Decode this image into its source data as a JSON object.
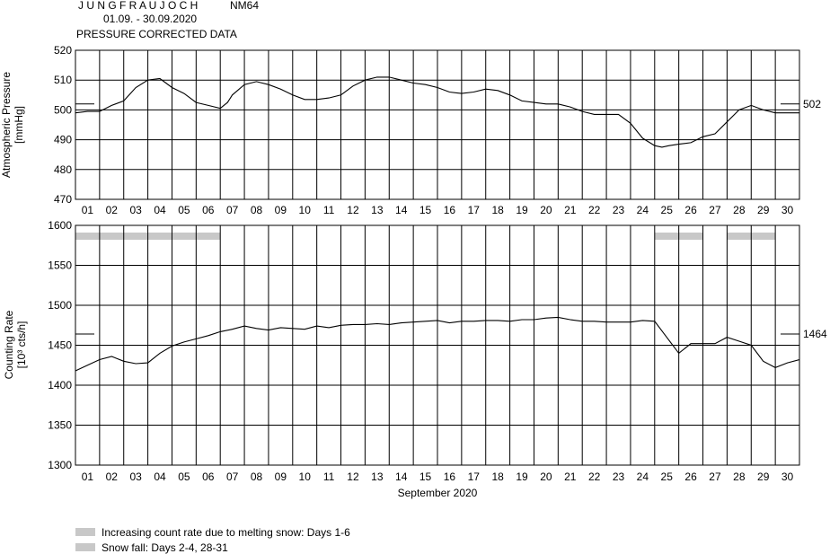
{
  "header": {
    "station": "J U N G F R A U J O C H",
    "monitor": "NM64",
    "date_range": "01.09. - 30.09.2020",
    "subtitle": "PRESSURE CORRECTED DATA"
  },
  "colors": {
    "line": "#000000",
    "grid": "#000000",
    "band": "#c8c8c8"
  },
  "chart_data": [
    {
      "type": "line",
      "name": "pressure",
      "ylabel": "Atmospheric Pressure",
      "yunit": "[mmHg]",
      "ylim": [
        470,
        520
      ],
      "yticks": [
        470,
        480,
        490,
        500,
        510,
        520
      ],
      "xlim": [
        0,
        30
      ],
      "xticks": [
        "01",
        "02",
        "03",
        "04",
        "05",
        "06",
        "07",
        "08",
        "09",
        "10",
        "11",
        "12",
        "13",
        "14",
        "15",
        "16",
        "17",
        "18",
        "19",
        "20",
        "21",
        "22",
        "23",
        "24",
        "25",
        "26",
        "27",
        "28",
        "29",
        "30"
      ],
      "grid": true,
      "reference": {
        "value": 502,
        "label": "502"
      },
      "x": [
        0,
        0.5,
        1,
        1.5,
        2,
        2.5,
        3,
        3.5,
        4,
        4.5,
        5,
        5.5,
        6,
        6.3,
        6.5,
        7,
        7.5,
        8,
        8.5,
        9,
        9.5,
        10,
        10.5,
        11,
        11.5,
        12,
        12.5,
        13,
        13.5,
        14,
        14.5,
        15,
        15.5,
        16,
        16.5,
        17,
        17.5,
        18,
        18.5,
        19,
        19.5,
        20,
        20.5,
        21,
        21.5,
        22,
        22.5,
        23,
        23.5,
        24,
        24.3,
        24.6,
        25,
        25.5,
        26,
        26.5,
        27,
        27.5,
        28,
        28.5,
        29,
        29.5,
        30
      ],
      "y": [
        499,
        499.5,
        499.5,
        501.5,
        503,
        507.5,
        510,
        510.5,
        507.5,
        505.5,
        502.5,
        501.5,
        500.5,
        502.5,
        505,
        508.5,
        509.5,
        508.5,
        507,
        505,
        503.5,
        503.5,
        504,
        505,
        508,
        510,
        511,
        511,
        510,
        509,
        508.5,
        507.5,
        506,
        505.5,
        506,
        507,
        506.5,
        505,
        503,
        502.5,
        502,
        502,
        501,
        499.5,
        498.5,
        498.5,
        498.5,
        495.5,
        490.5,
        488,
        487.5,
        488,
        488.5,
        489,
        491,
        492,
        496,
        500,
        501.5,
        500,
        499,
        499,
        499
      ]
    },
    {
      "type": "line",
      "name": "counting_rate",
      "ylabel": "Counting Rate",
      "yunit": "[10³ cts/h]",
      "ylim": [
        1300,
        1600
      ],
      "yticks": [
        1300,
        1350,
        1400,
        1450,
        1500,
        1550,
        1600
      ],
      "xlim": [
        0,
        30
      ],
      "xticks": [
        "01",
        "02",
        "03",
        "04",
        "05",
        "06",
        "07",
        "08",
        "09",
        "10",
        "11",
        "12",
        "13",
        "14",
        "15",
        "16",
        "17",
        "18",
        "19",
        "20",
        "21",
        "22",
        "23",
        "24",
        "25",
        "26",
        "27",
        "28",
        "29",
        "30"
      ],
      "xlabel": "September 2020",
      "grid": true,
      "reference": {
        "value": 1464,
        "label": "1464"
      },
      "bands": [
        {
          "start": 0,
          "end": 6
        },
        {
          "start": 24,
          "end": 26
        },
        {
          "start": 27,
          "end": 29
        }
      ],
      "x": [
        0,
        0.5,
        1,
        1.5,
        2,
        2.5,
        3,
        3.5,
        4,
        4.5,
        5,
        5.5,
        6,
        6.5,
        7,
        7.5,
        8,
        8.5,
        9,
        9.5,
        10,
        10.5,
        11,
        11.5,
        12,
        12.5,
        13,
        13.5,
        14,
        14.5,
        15,
        15.5,
        16,
        16.5,
        17,
        17.5,
        18,
        18.5,
        19,
        19.5,
        20,
        20.5,
        21,
        21.5,
        22,
        22.5,
        23,
        23.5,
        24,
        24.5,
        25,
        25.5,
        26,
        26.5,
        27,
        27.5,
        28,
        28.5,
        29,
        29.5,
        30
      ],
      "y": [
        1418,
        1425,
        1432,
        1436,
        1430,
        1427,
        1428,
        1440,
        1449,
        1454,
        1458,
        1462,
        1467,
        1470,
        1474,
        1471,
        1469,
        1472,
        1471,
        1470,
        1474,
        1472,
        1475,
        1476,
        1476,
        1477,
        1476,
        1478,
        1479,
        1480,
        1481,
        1478,
        1480,
        1480,
        1481,
        1481,
        1480,
        1482,
        1482,
        1484,
        1485,
        1482,
        1480,
        1480,
        1479,
        1479,
        1479,
        1481,
        1480,
        1460,
        1440,
        1452,
        1452,
        1452,
        1460,
        1455,
        1450,
        1430,
        1422,
        1428,
        1432
      ]
    }
  ],
  "legend": [
    {
      "label": "Increasing count rate due to melting snow: Days 1-6"
    },
    {
      "label": "Snow fall: Days 2-4, 28-31"
    }
  ]
}
